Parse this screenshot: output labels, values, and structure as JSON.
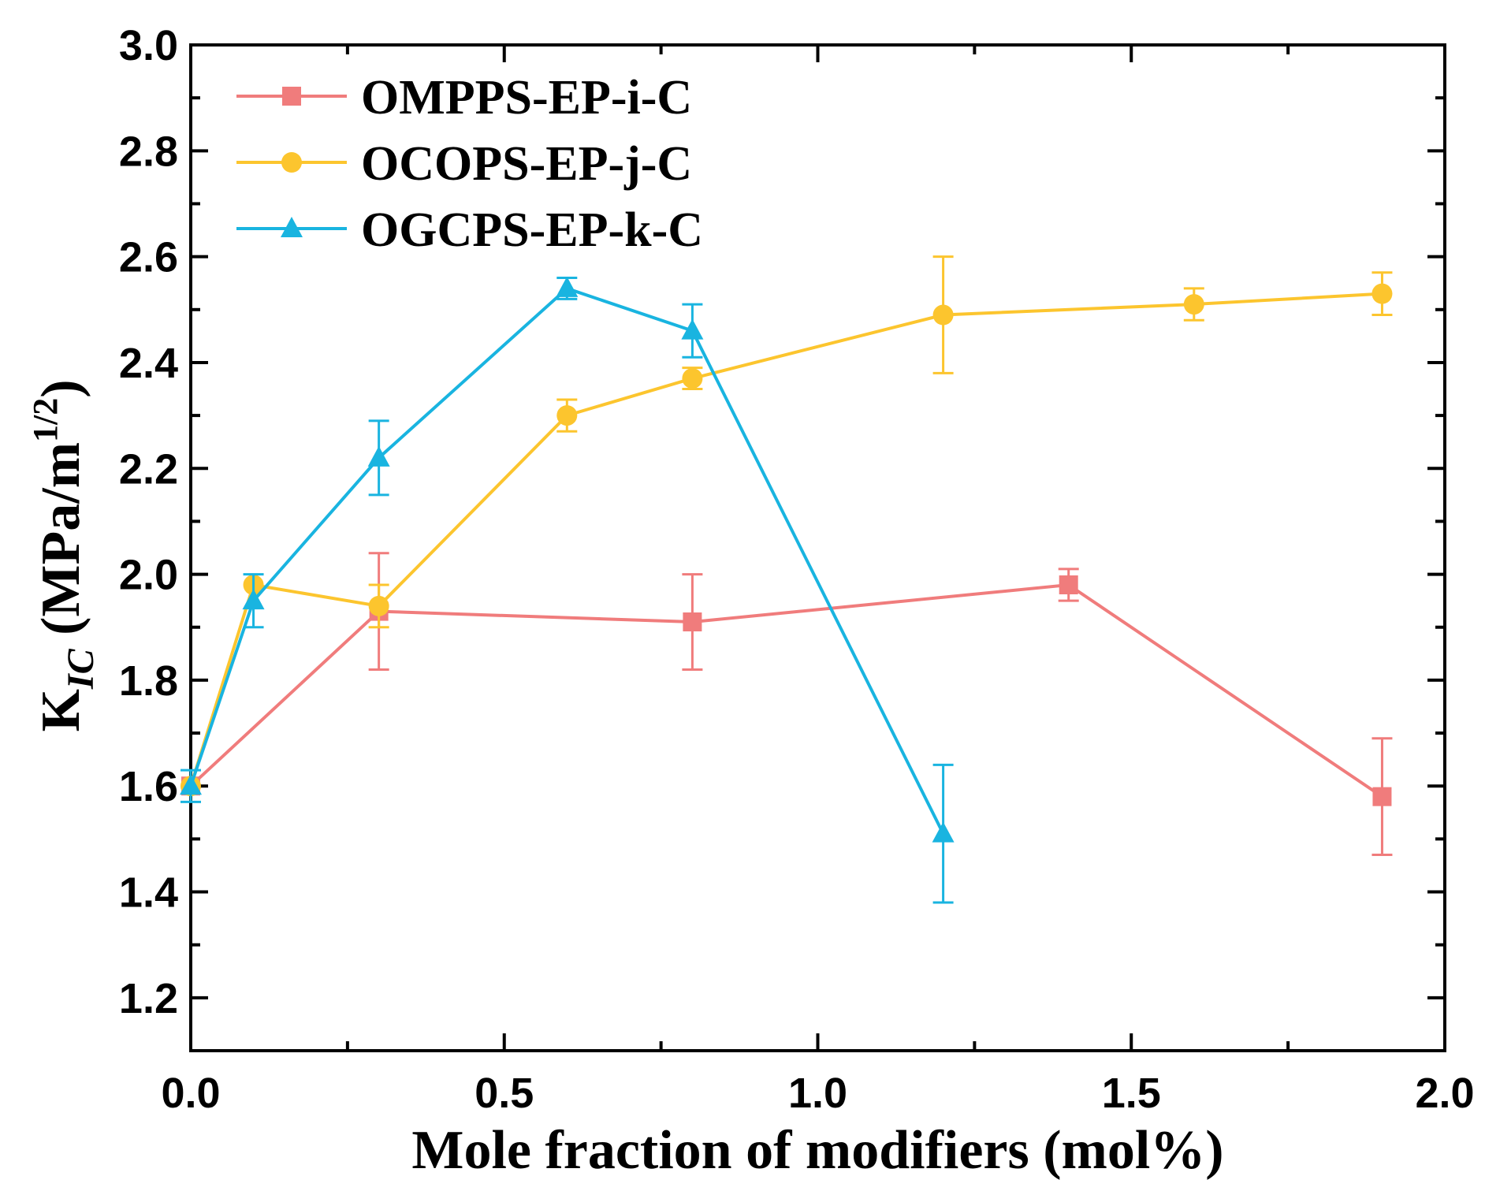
{
  "chart_data": {
    "type": "line",
    "xlabel": "Mole fraction of modifiers (mol%)",
    "ylabel": {
      "main": "K",
      "sub": "IC",
      "unit_prefix": " (MPa/m",
      "unit_sup": "1/2",
      "unit_suffix": ")"
    },
    "xlim": [
      0.0,
      2.0
    ],
    "ylim": [
      1.1,
      3.0
    ],
    "xticks": [
      0.0,
      0.5,
      1.0,
      1.5,
      2.0
    ],
    "xtick_labels": [
      "0.0",
      "0.5",
      "1.0",
      "1.5",
      "2.0"
    ],
    "yticks": [
      1.2,
      1.4,
      1.6,
      1.8,
      2.0,
      2.2,
      2.4,
      2.6,
      2.8,
      3.0
    ],
    "ytick_labels": [
      "1.2",
      "1.4",
      "1.6",
      "1.8",
      "2.0",
      "2.2",
      "2.4",
      "2.6",
      "2.8",
      "3.0"
    ],
    "grid": false,
    "legend": "top-left",
    "series": [
      {
        "name": "OMPPS-EP-i-C",
        "color": "#f07c7c",
        "marker": "square",
        "x": [
          0.0,
          0.3,
          0.8,
          1.4,
          1.9
        ],
        "y": [
          1.6,
          1.93,
          1.91,
          1.98,
          1.58
        ],
        "err": [
          0.0,
          0.11,
          0.09,
          0.03,
          0.11
        ]
      },
      {
        "name": "OCOPS-EP-j-C",
        "color": "#fcc52e",
        "marker": "circle",
        "x": [
          0.0,
          0.1,
          0.3,
          0.6,
          0.8,
          1.2,
          1.6,
          1.9
        ],
        "y": [
          1.6,
          1.98,
          1.94,
          2.3,
          2.37,
          2.49,
          2.51,
          2.53
        ],
        "err": [
          0.0,
          0.0,
          0.04,
          0.03,
          0.02,
          0.11,
          0.03,
          0.04
        ]
      },
      {
        "name": "OGCPS-EP-k-C",
        "color": "#19b4e0",
        "marker": "triangle",
        "x": [
          0.0,
          0.1,
          0.3,
          0.6,
          0.8,
          1.2
        ],
        "y": [
          1.6,
          1.95,
          2.22,
          2.54,
          2.46,
          1.51
        ],
        "err": [
          0.03,
          0.05,
          0.07,
          0.02,
          0.05,
          0.13
        ]
      }
    ]
  }
}
